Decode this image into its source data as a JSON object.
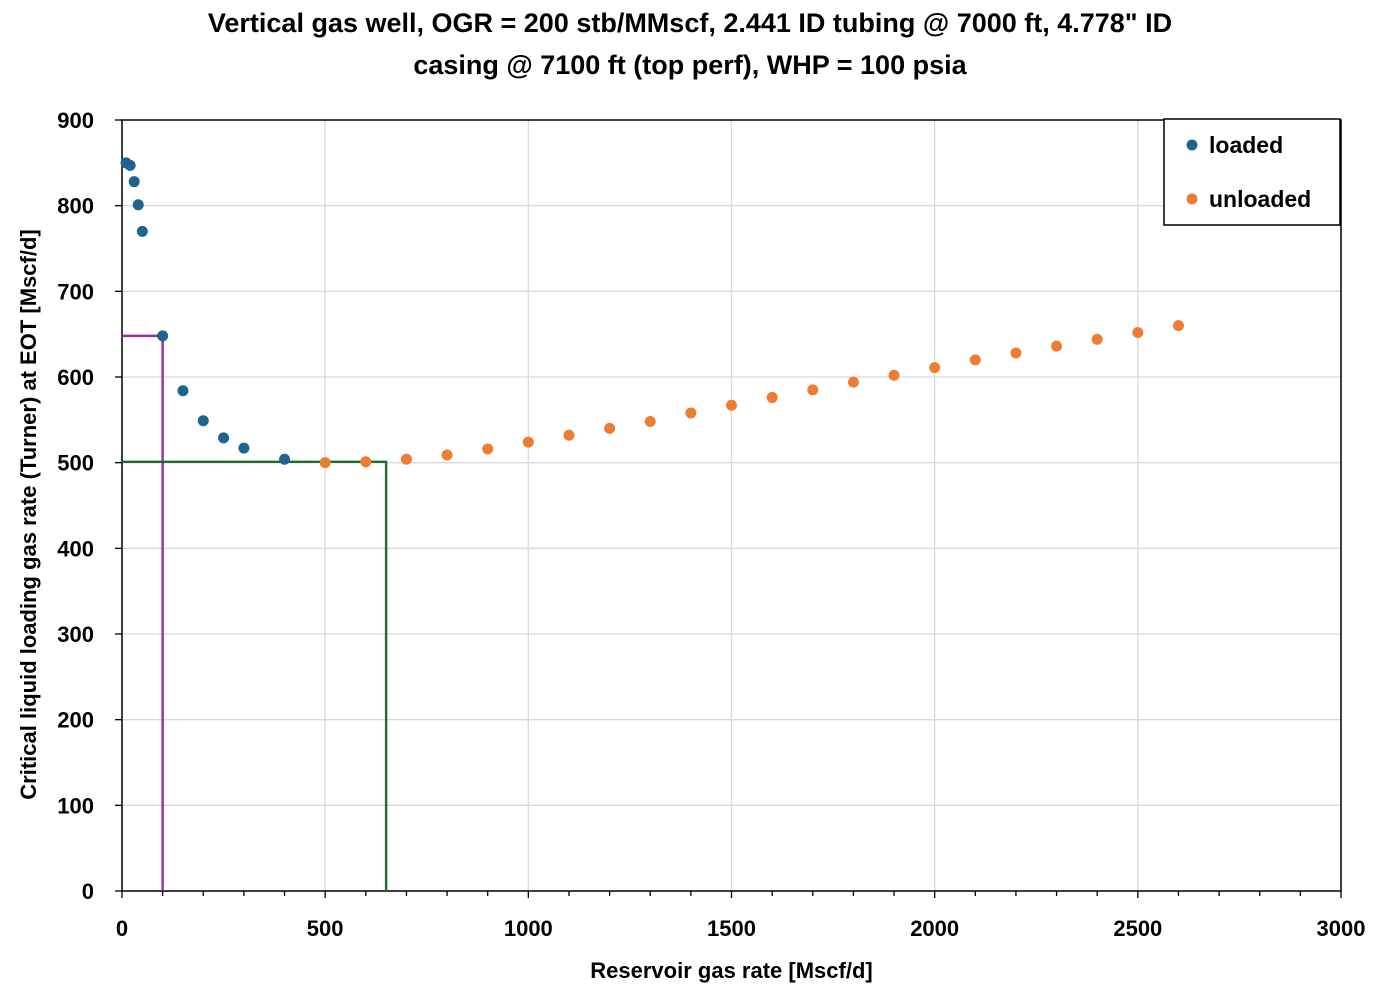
{
  "chart_data": {
    "type": "scatter",
    "title_lines": [
      "Vertical gas well, OGR = 200 stb/MMscf, 2.441 ID tubing @ 7000 ft, 4.778\" ID",
      "casing @ 7100 ft (top perf), WHP = 100 psia"
    ],
    "xlabel": "Reservoir gas rate [Mscf/d]",
    "ylabel": "Critical liquid loading gas rate (Turner) at EOT [Mscf/d]",
    "xlim": [
      0,
      3000
    ],
    "ylim": [
      0,
      900
    ],
    "xticks": [
      0,
      500,
      1000,
      1500,
      2000,
      2500,
      3000
    ],
    "yticks": [
      0,
      100,
      200,
      300,
      400,
      500,
      600,
      700,
      800,
      900
    ],
    "grid": true,
    "legend_position": "top-right",
    "series": [
      {
        "name": "loaded",
        "color": "#1f6391",
        "points": [
          [
            10,
            850
          ],
          [
            20,
            847
          ],
          [
            30,
            828
          ],
          [
            40,
            801
          ],
          [
            50,
            770
          ],
          [
            100,
            648
          ],
          [
            150,
            584
          ],
          [
            200,
            549
          ],
          [
            250,
            529
          ],
          [
            300,
            517
          ],
          [
            400,
            504
          ]
        ]
      },
      {
        "name": "unloaded",
        "color": "#ed7d31",
        "points": [
          [
            500,
            500
          ],
          [
            600,
            501
          ],
          [
            700,
            504
          ],
          [
            800,
            509
          ],
          [
            900,
            516
          ],
          [
            1000,
            524
          ],
          [
            1100,
            532
          ],
          [
            1200,
            540
          ],
          [
            1300,
            548
          ],
          [
            1400,
            558
          ],
          [
            1500,
            567
          ],
          [
            1600,
            576
          ],
          [
            1700,
            585
          ],
          [
            1800,
            594
          ],
          [
            1900,
            602
          ],
          [
            2000,
            611
          ],
          [
            2100,
            620
          ],
          [
            2200,
            628
          ],
          [
            2300,
            636
          ],
          [
            2400,
            644
          ],
          [
            2500,
            652
          ],
          [
            2600,
            660
          ]
        ]
      }
    ],
    "reference_lines": [
      {
        "color": "#9b2c9d",
        "points": [
          [
            0,
            648
          ],
          [
            100,
            648
          ],
          [
            100,
            0
          ]
        ]
      },
      {
        "color": "#1e6b2e",
        "points": [
          [
            0,
            501
          ],
          [
            650,
            501
          ],
          [
            650,
            0
          ]
        ]
      }
    ]
  }
}
